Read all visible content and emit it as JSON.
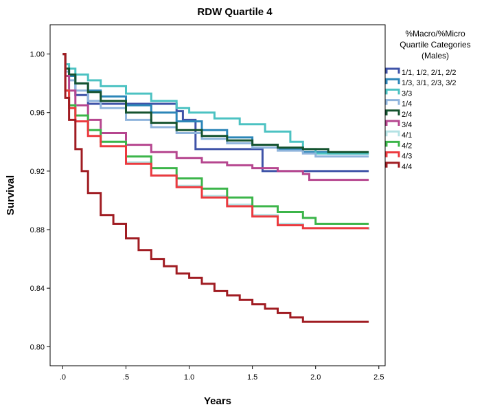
{
  "chart_data": {
    "type": "line",
    "step": true,
    "title": "RDW Quartile 4",
    "xlabel": "Years",
    "ylabel": "Survival",
    "xlim": [
      -0.1,
      2.55
    ],
    "ylim": [
      0.787,
      1.02
    ],
    "x_ticks": [
      0,
      0.5,
      1.0,
      1.5,
      2.0,
      2.5
    ],
    "x_tick_labels": [
      ".0",
      ".5",
      "1.0",
      "1.5",
      "2.0",
      "2.5"
    ],
    "y_ticks": [
      0.8,
      0.84,
      0.88,
      0.92,
      0.96,
      1.0
    ],
    "y_tick_labels": [
      "0.80",
      "0.84",
      "0.88",
      "0.92",
      "0.96",
      "1.00"
    ],
    "legend": {
      "title_lines": [
        "%Macro/%Micro",
        "Quartile Categories",
        "(Males)"
      ],
      "placement": "right"
    },
    "series": [
      {
        "name": "1/1, 1/2, 2/1, 2/2",
        "color": "#3f53a8",
        "x": [
          0,
          0.02,
          0.1,
          0.2,
          0.3,
          0.5,
          0.7,
          0.9,
          0.95,
          1.05,
          1.2,
          1.4,
          1.58,
          1.7,
          2.0,
          2.42
        ],
        "y": [
          1.0,
          0.985,
          0.972,
          0.966,
          0.966,
          0.966,
          0.966,
          0.961,
          0.955,
          0.935,
          0.935,
          0.935,
          0.92,
          0.92,
          0.92,
          0.92
        ]
      },
      {
        "name": "1/3, 3/1, 2/3, 3/2",
        "color": "#2c86b8",
        "x": [
          0,
          0.02,
          0.05,
          0.1,
          0.2,
          0.3,
          0.5,
          0.7,
          0.9,
          1.1,
          1.3,
          1.5,
          1.7,
          1.9,
          2.1,
          2.42
        ],
        "y": [
          1.0,
          0.99,
          0.985,
          0.98,
          0.975,
          0.971,
          0.965,
          0.96,
          0.954,
          0.948,
          0.943,
          0.938,
          0.935,
          0.933,
          0.932,
          0.932
        ]
      },
      {
        "name": "3/3",
        "color": "#4cc2c2",
        "x": [
          0,
          0.02,
          0.05,
          0.1,
          0.2,
          0.3,
          0.5,
          0.7,
          0.9,
          1.0,
          1.2,
          1.4,
          1.6,
          1.8,
          1.9,
          2.0,
          2.42
        ],
        "y": [
          1.0,
          0.993,
          0.99,
          0.986,
          0.982,
          0.978,
          0.973,
          0.968,
          0.963,
          0.96,
          0.956,
          0.952,
          0.947,
          0.94,
          0.935,
          0.932,
          0.932
        ]
      },
      {
        "name": "1/4",
        "color": "#8fb4dc",
        "x": [
          0,
          0.02,
          0.05,
          0.1,
          0.2,
          0.3,
          0.5,
          0.7,
          0.9,
          1.1,
          1.3,
          1.5,
          1.7,
          1.9,
          2.0,
          2.42
        ],
        "y": [
          1.0,
          0.988,
          0.982,
          0.975,
          0.968,
          0.963,
          0.955,
          0.95,
          0.946,
          0.942,
          0.939,
          0.936,
          0.934,
          0.932,
          0.93,
          0.93
        ]
      },
      {
        "name": "2/4",
        "color": "#15532f",
        "x": [
          0,
          0.02,
          0.05,
          0.1,
          0.2,
          0.3,
          0.5,
          0.7,
          0.9,
          1.1,
          1.3,
          1.5,
          1.7,
          1.9,
          2.1,
          2.42
        ],
        "y": [
          1.0,
          0.99,
          0.986,
          0.98,
          0.974,
          0.968,
          0.96,
          0.953,
          0.948,
          0.944,
          0.941,
          0.938,
          0.936,
          0.935,
          0.933,
          0.933
        ]
      },
      {
        "name": "3/4",
        "color": "#b6468f",
        "x": [
          0,
          0.02,
          0.05,
          0.1,
          0.2,
          0.3,
          0.5,
          0.7,
          0.9,
          1.1,
          1.3,
          1.5,
          1.7,
          1.9,
          1.95,
          2.42
        ],
        "y": [
          1.0,
          0.985,
          0.975,
          0.965,
          0.955,
          0.946,
          0.938,
          0.933,
          0.929,
          0.926,
          0.924,
          0.922,
          0.92,
          0.918,
          0.914,
          0.914
        ]
      },
      {
        "name": "4/1",
        "color": "#b4e2e4",
        "x": [
          0,
          0.02,
          0.05,
          0.1,
          0.2,
          0.3,
          0.5,
          0.7,
          0.9,
          1.1,
          1.3,
          1.5,
          1.7,
          1.9,
          2.42
        ],
        "y": [
          1.0,
          0.975,
          0.965,
          0.958,
          0.948,
          0.94,
          0.926,
          0.917,
          0.91,
          0.903,
          0.897,
          0.89,
          0.884,
          0.881,
          0.88
        ]
      },
      {
        "name": "4/2",
        "color": "#3cb54a",
        "x": [
          0,
          0.02,
          0.05,
          0.1,
          0.2,
          0.3,
          0.5,
          0.7,
          0.9,
          1.1,
          1.3,
          1.5,
          1.7,
          1.9,
          2.0,
          2.42
        ],
        "y": [
          1.0,
          0.975,
          0.965,
          0.958,
          0.948,
          0.94,
          0.93,
          0.922,
          0.915,
          0.908,
          0.902,
          0.896,
          0.892,
          0.888,
          0.884,
          0.884
        ]
      },
      {
        "name": "4/3",
        "color": "#ec3a3f",
        "x": [
          0,
          0.02,
          0.05,
          0.1,
          0.2,
          0.3,
          0.5,
          0.7,
          0.9,
          1.1,
          1.3,
          1.5,
          1.7,
          1.9,
          2.42
        ],
        "y": [
          1.0,
          0.975,
          0.963,
          0.954,
          0.944,
          0.937,
          0.925,
          0.917,
          0.909,
          0.902,
          0.896,
          0.889,
          0.883,
          0.881,
          0.881
        ]
      },
      {
        "name": "4/4",
        "color": "#a01c22",
        "x": [
          0,
          0.02,
          0.05,
          0.1,
          0.15,
          0.2,
          0.3,
          0.4,
          0.5,
          0.6,
          0.7,
          0.8,
          0.9,
          1.0,
          1.1,
          1.2,
          1.3,
          1.4,
          1.5,
          1.6,
          1.7,
          1.8,
          1.9,
          2.0,
          2.42
        ],
        "y": [
          1.0,
          0.97,
          0.955,
          0.935,
          0.92,
          0.905,
          0.89,
          0.884,
          0.874,
          0.866,
          0.86,
          0.855,
          0.85,
          0.847,
          0.843,
          0.838,
          0.835,
          0.832,
          0.829,
          0.826,
          0.823,
          0.82,
          0.817,
          0.817,
          0.817
        ]
      }
    ]
  }
}
